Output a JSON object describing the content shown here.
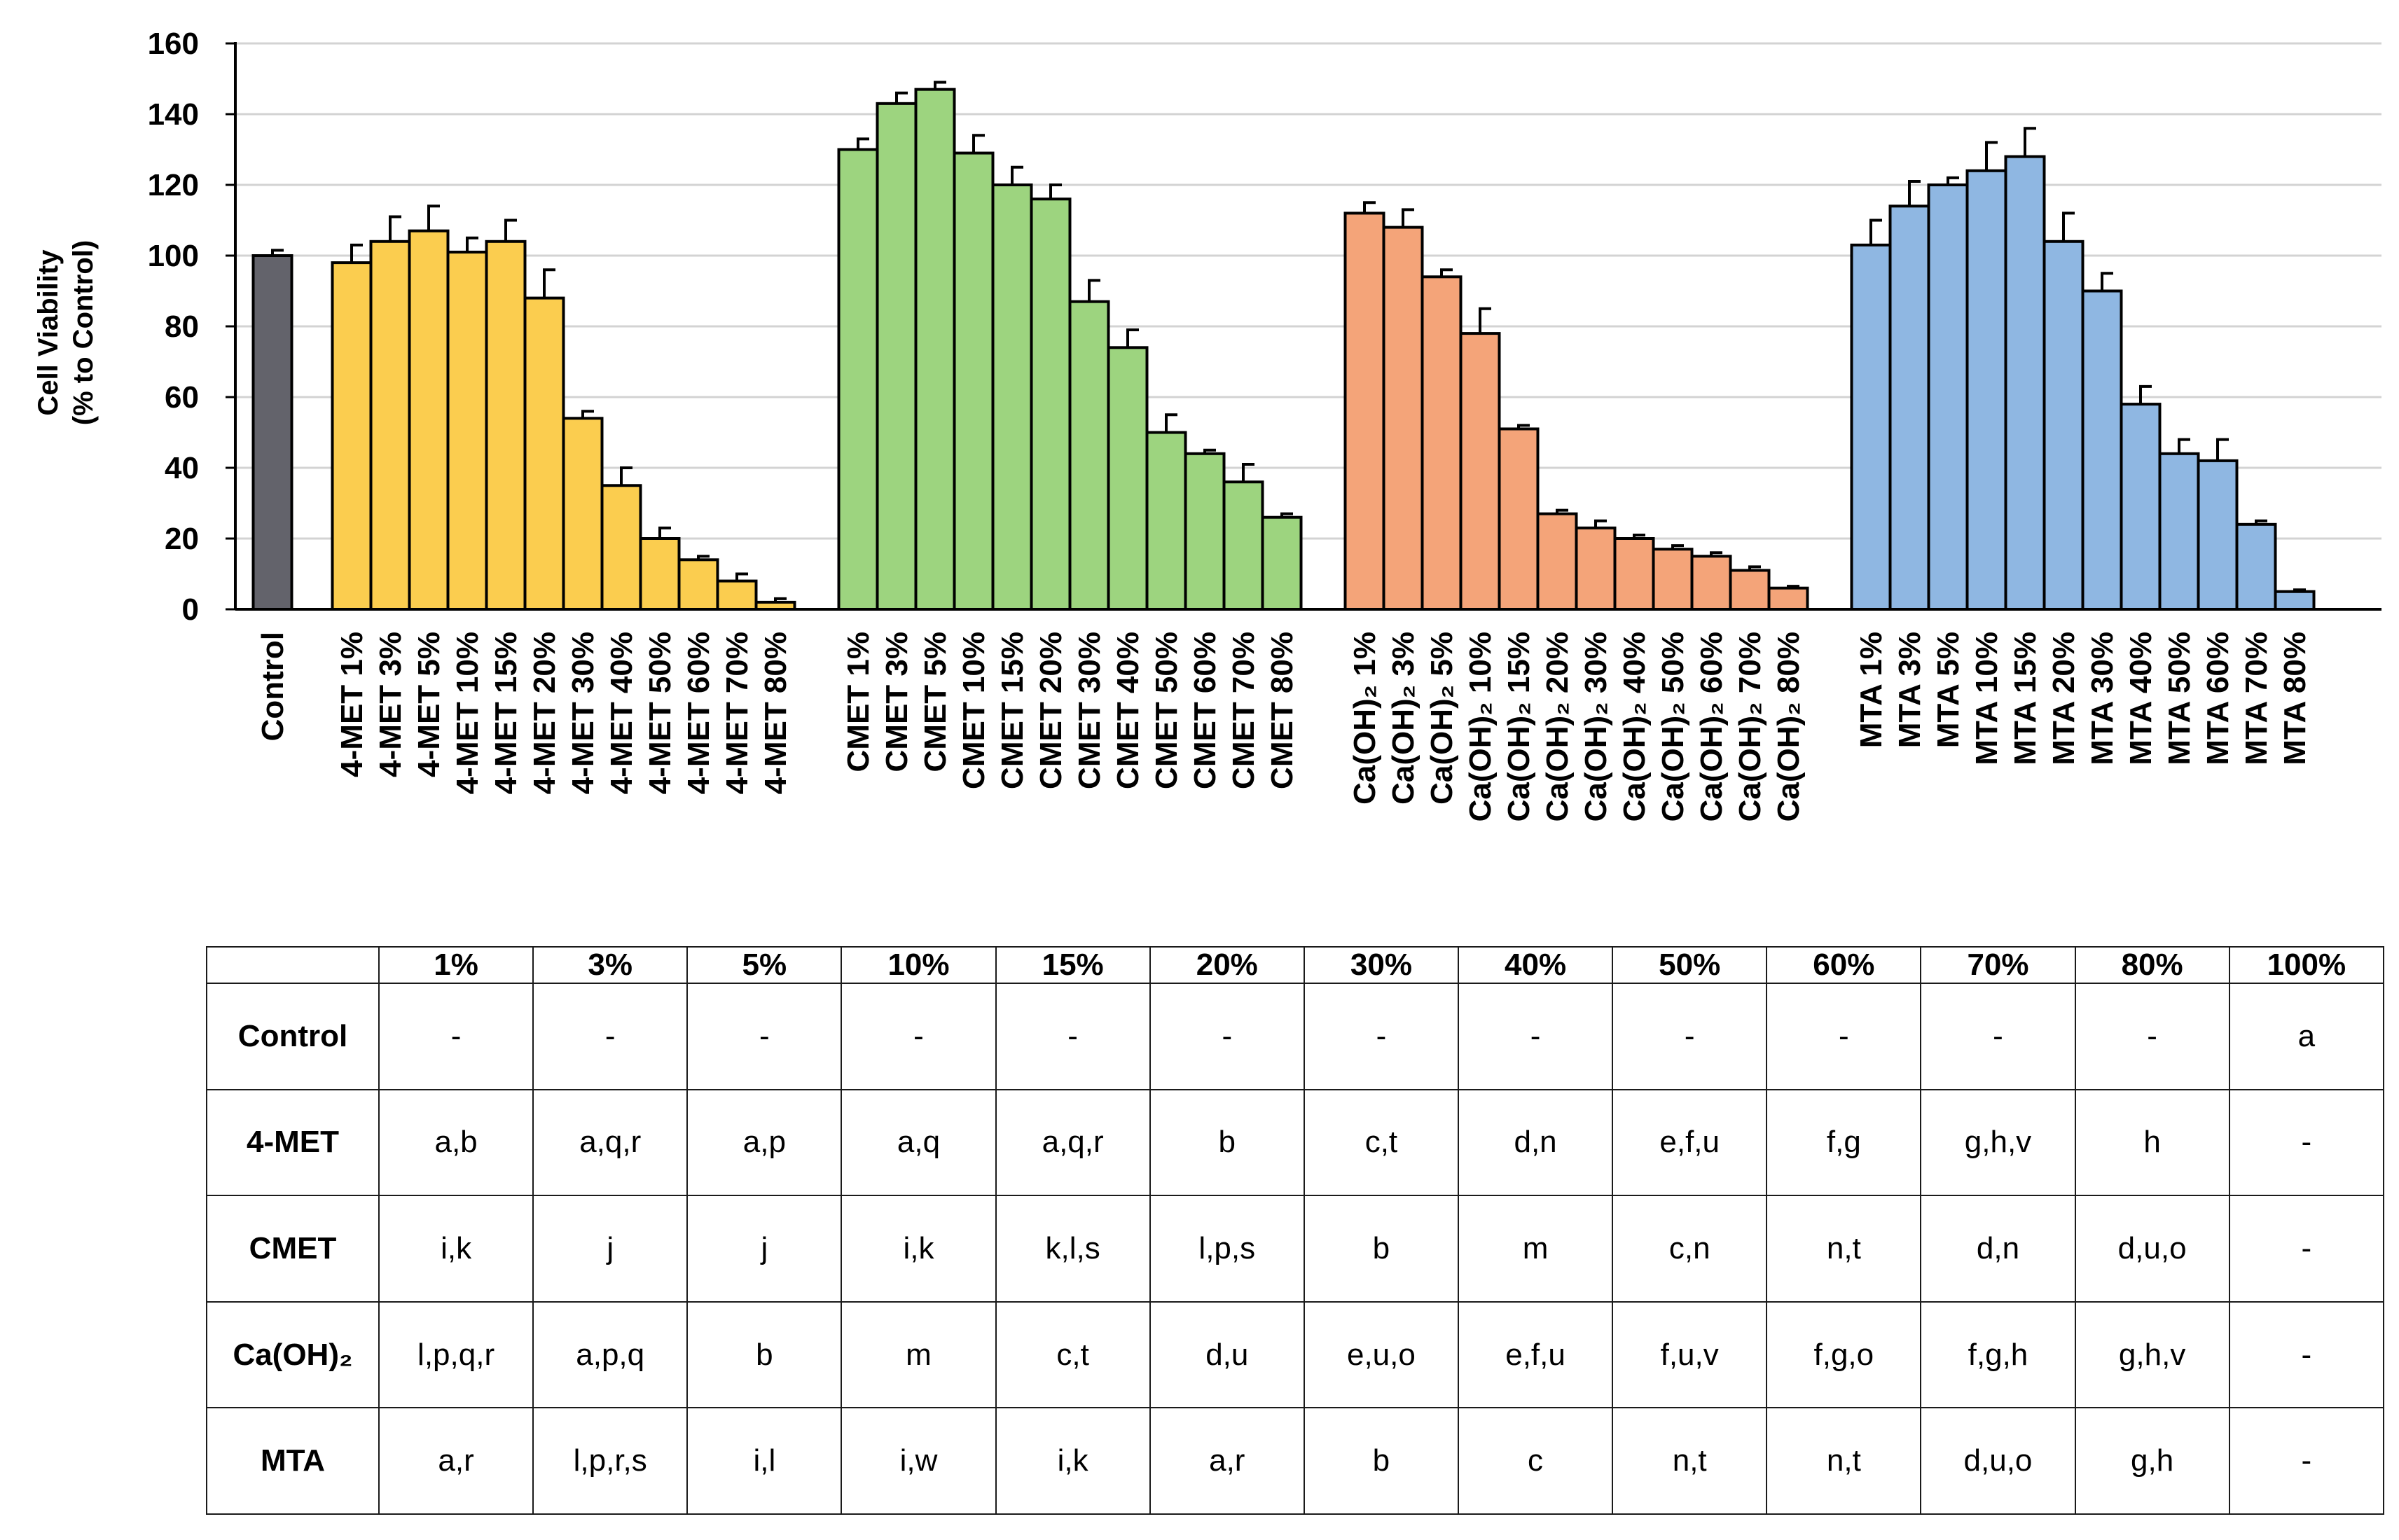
{
  "chart_data": {
    "type": "bar",
    "ylabel_line1": "Cell Viability",
    "ylabel_line2": "(% to Control)",
    "xlabel": "",
    "ylim": [
      0,
      160
    ],
    "yticks": [
      0,
      20,
      40,
      60,
      80,
      100,
      120,
      140,
      160
    ],
    "grid": true,
    "groups": [
      {
        "name": "Control",
        "color": "#63636b",
        "categories": [
          "Control"
        ],
        "values": [
          100
        ],
        "errors": [
          1.5
        ]
      },
      {
        "name": "4-MET",
        "color": "#fbcd4f",
        "categories": [
          "4-MET 1%",
          "4-MET 3%",
          "4-MET 5%",
          "4-MET 10%",
          "4-MET 15%",
          "4-MET 20%",
          "4-MET 30%",
          "4-MET 40%",
          "4-MET 50%",
          "4-MET 60%",
          "4-MET 70%",
          "4-MET 80%"
        ],
        "values": [
          98,
          104,
          107,
          101,
          104,
          88,
          54,
          35,
          20,
          14,
          8,
          2
        ],
        "errors": [
          5,
          7,
          7,
          4,
          6,
          8,
          2,
          5,
          3,
          1,
          2,
          1
        ]
      },
      {
        "name": "CMET",
        "color": "#9dd47f",
        "categories": [
          "CMET 1%",
          "CMET 3%",
          "CMET 5%",
          "CMET 10%",
          "CMET 15%",
          "CMET 20%",
          "CMET 30%",
          "CMET 40%",
          "CMET 50%",
          "CMET 60%",
          "CMET 70%",
          "CMET 80%"
        ],
        "values": [
          130,
          143,
          147,
          129,
          120,
          116,
          87,
          74,
          50,
          44,
          36,
          26
        ],
        "errors": [
          3,
          3,
          2,
          5,
          5,
          4,
          6,
          5,
          5,
          1,
          5,
          1
        ]
      },
      {
        "name": "Ca(OH)₂",
        "color": "#f4a479",
        "categories": [
          "Ca(OH)₂ 1%",
          "Ca(OH)₂ 3%",
          "Ca(OH)₂ 5%",
          "Ca(OH)₂ 10%",
          "Ca(OH)₂ 15%",
          "Ca(OH)₂ 20%",
          "Ca(OH)₂ 30%",
          "Ca(OH)₂ 40%",
          "Ca(OH)₂ 50%",
          "Ca(OH)₂ 60%",
          "Ca(OH)₂ 70%",
          "Ca(OH)₂ 80%"
        ],
        "values": [
          112,
          108,
          94,
          78,
          51,
          27,
          23,
          20,
          17,
          15,
          11,
          6
        ],
        "errors": [
          3,
          5,
          2,
          7,
          1,
          1,
          2,
          1,
          1,
          1,
          1,
          0.5
        ]
      },
      {
        "name": "MTA",
        "color": "#8fb7e2",
        "categories": [
          "MTA 1%",
          "MTA 3%",
          "MTA 5%",
          "MTA 10%",
          "MTA 15%",
          "MTA 20%",
          "MTA 30%",
          "MTA 40%",
          "MTA 50%",
          "MTA 60%",
          "MTA 70%",
          "MTA 80%"
        ],
        "values": [
          103,
          114,
          120,
          124,
          128,
          104,
          90,
          58,
          44,
          42,
          24,
          5
        ],
        "errors": [
          7,
          7,
          2,
          8,
          8,
          8,
          5,
          5,
          4,
          6,
          1,
          0.5
        ]
      }
    ]
  },
  "table": {
    "corner": "",
    "columns": [
      "1%",
      "3%",
      "5%",
      "10%",
      "15%",
      "20%",
      "30%",
      "40%",
      "50%",
      "60%",
      "70%",
      "80%",
      "100%"
    ],
    "rows": [
      {
        "label": "Control",
        "cells": [
          "-",
          "-",
          "-",
          "-",
          "-",
          "-",
          "-",
          "-",
          "-",
          "-",
          "-",
          "-",
          "a"
        ]
      },
      {
        "label": "4-MET",
        "cells": [
          "a,b",
          "a,q,r",
          "a,p",
          "a,q",
          "a,q,r",
          "b",
          "c,t",
          "d,n",
          "e,f,u",
          "f,g",
          "g,h,v",
          "h",
          "-"
        ]
      },
      {
        "label": "CMET",
        "cells": [
          "i,k",
          "j",
          "j",
          "i,k",
          "k,l,s",
          "l,p,s",
          "b",
          "m",
          "c,n",
          "n,t",
          "d,n",
          "d,u,o",
          "-"
        ]
      },
      {
        "label": "Ca(OH)₂",
        "cells": [
          "l,p,q,r",
          "a,p,q",
          "b",
          "m",
          "c,t",
          "d,u",
          "e,u,o",
          "e,f,u",
          "f,u,v",
          "f,g,o",
          "f,g,h",
          "g,h,v",
          "-"
        ]
      },
      {
        "label": "MTA",
        "cells": [
          "a,r",
          "l,p,r,s",
          "i,l",
          "i,w",
          "i,k",
          "a,r",
          "b",
          "c",
          "n,t",
          "n,t",
          "d,u,o",
          "g,h",
          "-"
        ]
      }
    ]
  }
}
